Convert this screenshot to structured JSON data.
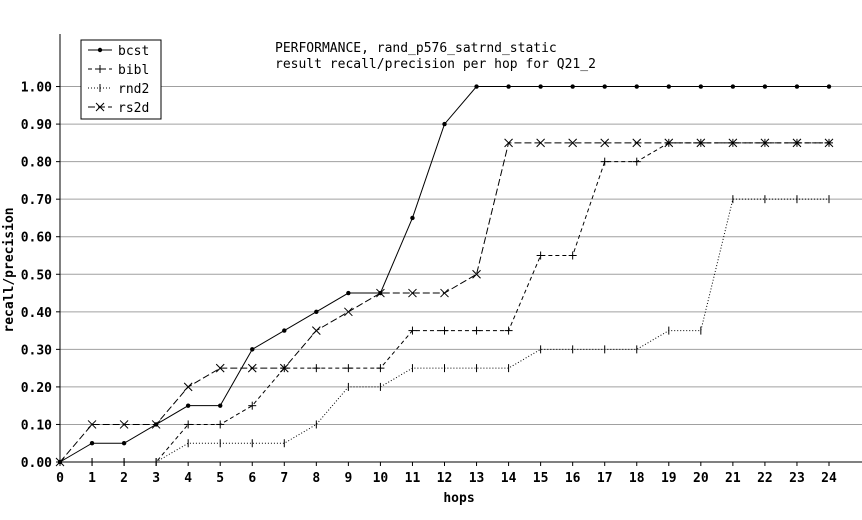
{
  "chart_data": {
    "type": "line",
    "title": "PERFORMANCE, rand_p576_satrnd_static",
    "subtitle": "result recall/precision per hop for Q21_2",
    "xlabel": "hops",
    "ylabel": "recall/precision",
    "xlim": [
      0,
      24
    ],
    "ylim": [
      0,
      1.1
    ],
    "x_ticks": [
      "0",
      "1",
      "2",
      "3",
      "4",
      "5",
      "6",
      "7",
      "8",
      "9",
      "10",
      "11",
      "12",
      "13",
      "14",
      "15",
      "16",
      "17",
      "18",
      "19",
      "20",
      "21",
      "22",
      "23",
      "24"
    ],
    "y_ticks": [
      "0.00",
      "0.10",
      "0.20",
      "0.30",
      "0.40",
      "0.50",
      "0.60",
      "0.70",
      "0.80",
      "0.90",
      "1.00"
    ],
    "grid": true,
    "legend_position": "top-left",
    "x": [
      0,
      1,
      2,
      3,
      4,
      5,
      6,
      7,
      8,
      9,
      10,
      11,
      12,
      13,
      14,
      15,
      16,
      17,
      18,
      19,
      20,
      21,
      22,
      23,
      24
    ],
    "series": [
      {
        "name": "bcst",
        "marker": "dot",
        "dash": "solid",
        "values": [
          0.0,
          0.05,
          0.05,
          0.1,
          0.15,
          0.15,
          0.3,
          0.35,
          0.4,
          0.45,
          0.45,
          0.65,
          0.9,
          1.0,
          1.0,
          1.0,
          1.0,
          1.0,
          1.0,
          1.0,
          1.0,
          1.0,
          1.0,
          1.0,
          1.0
        ]
      },
      {
        "name": "bibl",
        "marker": "plus",
        "dash": "dashed",
        "values": [
          0.0,
          0.0,
          0.0,
          0.0,
          0.1,
          0.1,
          0.15,
          0.25,
          0.25,
          0.25,
          0.25,
          0.35,
          0.35,
          0.35,
          0.35,
          0.55,
          0.55,
          0.8,
          0.8,
          0.85,
          0.85,
          0.85,
          0.85,
          0.85,
          0.85
        ]
      },
      {
        "name": "rnd2",
        "marker": "bar",
        "dash": "dotted",
        "values": [
          0.0,
          0.0,
          0.0,
          0.0,
          0.05,
          0.05,
          0.05,
          0.05,
          0.1,
          0.2,
          0.2,
          0.25,
          0.25,
          0.25,
          0.25,
          0.3,
          0.3,
          0.3,
          0.3,
          0.35,
          0.35,
          0.7,
          0.7,
          0.7,
          0.7
        ]
      },
      {
        "name": "rs2d",
        "marker": "cross",
        "dash": "longdash",
        "values": [
          0.0,
          0.1,
          0.1,
          0.1,
          0.2,
          0.25,
          0.25,
          0.25,
          0.35,
          0.4,
          0.45,
          0.45,
          0.45,
          0.5,
          0.85,
          0.85,
          0.85,
          0.85,
          0.85,
          0.85,
          0.85,
          0.85,
          0.85,
          0.85,
          0.85
        ]
      }
    ]
  }
}
